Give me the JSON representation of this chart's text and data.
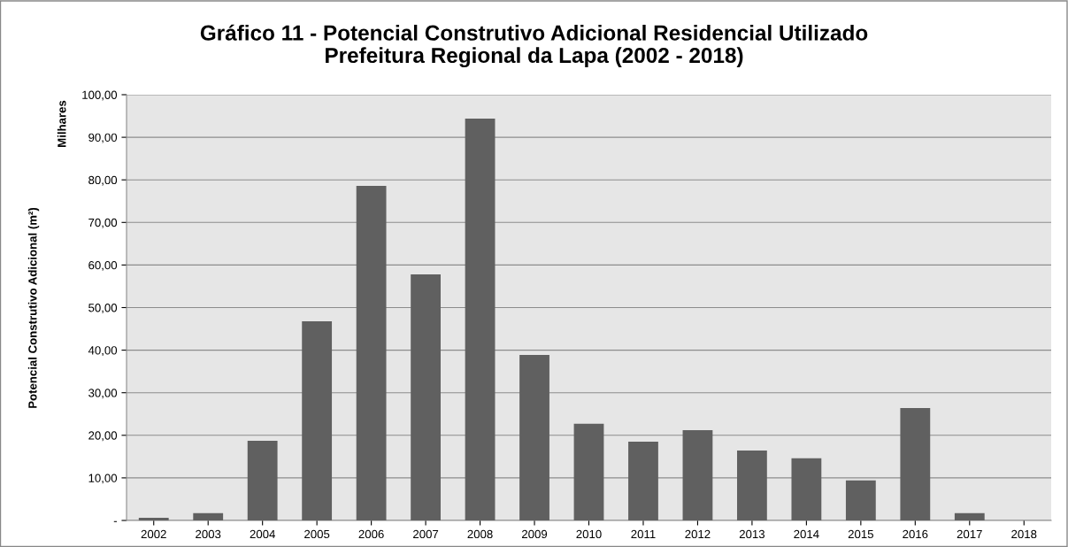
{
  "chart_data": {
    "type": "bar",
    "title": "Gráfico 11 - Potencial Construtivo Adicional Residencial Utilizado\nPrefeitura Regional da Lapa (2002 - 2018)",
    "ylabel": "Potencial Construtivo Adicional (m²)",
    "annotations": [
      "Milhares"
    ],
    "categories": [
      "2002",
      "2003",
      "2004",
      "2005",
      "2006",
      "2007",
      "2008",
      "2009",
      "2010",
      "2011",
      "2012",
      "2013",
      "2014",
      "2015",
      "2016",
      "2017",
      "2018"
    ],
    "values": [
      0.6,
      1.7,
      18.7,
      46.8,
      78.6,
      57.8,
      94.4,
      38.9,
      22.7,
      18.5,
      21.2,
      16.4,
      14.6,
      9.4,
      26.4,
      1.7,
      0
    ],
    "color": "#606060",
    "ylim": [
      0,
      100
    ],
    "yticks": [
      {
        "value": 0,
        "label": "-"
      },
      {
        "value": 10,
        "label": "10,00"
      },
      {
        "value": 20,
        "label": "20,00"
      },
      {
        "value": 30,
        "label": "30,00"
      },
      {
        "value": 40,
        "label": "40,00"
      },
      {
        "value": 50,
        "label": "50,00"
      },
      {
        "value": 60,
        "label": "60,00"
      },
      {
        "value": 70,
        "label": "70,00"
      },
      {
        "value": 80,
        "label": "80,00"
      },
      {
        "value": 90,
        "label": "90,00"
      },
      {
        "value": 100,
        "label": "100,00"
      }
    ],
    "grid": "y"
  }
}
